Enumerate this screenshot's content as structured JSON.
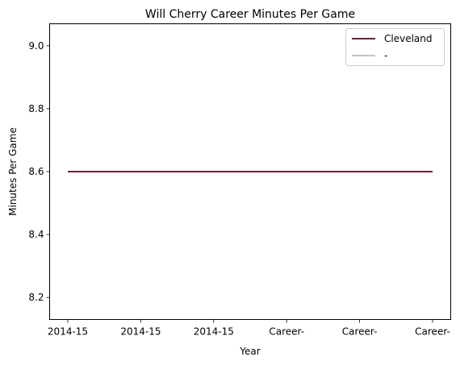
{
  "chart_data": {
    "type": "line",
    "title": "Will Cherry Career Minutes Per Game",
    "xlabel": "Year",
    "ylabel": "Minutes Per Game",
    "categories": [
      "2014-15",
      "2014-15",
      "2014-15",
      "Career-",
      "Career-",
      "Career-"
    ],
    "yticks": [
      8.2,
      8.4,
      8.6,
      8.8,
      9.0
    ],
    "ytick_labels": [
      "8.2",
      "8.4",
      "8.6",
      "8.8",
      "9.0"
    ],
    "ylim": [
      8.13,
      9.07
    ],
    "grid": false,
    "legend_position": "top-right",
    "series": [
      {
        "name": "Cleveland",
        "values": [
          8.6,
          8.6,
          8.6,
          8.6,
          8.6,
          8.6
        ],
        "color": "#6a2139"
      },
      {
        "name": "-",
        "values": [
          8.6,
          8.6,
          8.6,
          8.6,
          8.6,
          8.6
        ],
        "color": "#c4c4c4"
      }
    ]
  }
}
